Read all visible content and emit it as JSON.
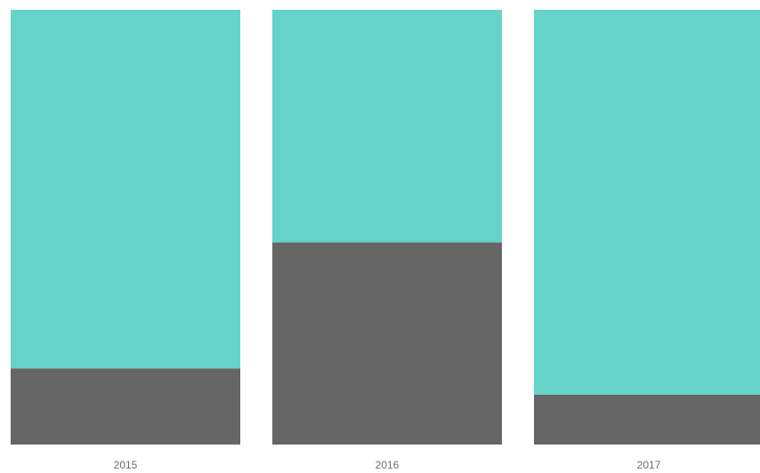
{
  "chart_data": {
    "type": "bar",
    "stacked": true,
    "percent_stacked": true,
    "categories": [
      "2015",
      "2016",
      "2017"
    ],
    "series": [
      {
        "values": [
          17.5,
          46.5,
          11.5
        ],
        "color": "#666666"
      },
      {
        "values": [
          82.5,
          53.5,
          88.5
        ],
        "color": "#66d3ca"
      }
    ],
    "ylim": [
      0,
      100
    ],
    "grid": false,
    "legend": "none",
    "title": "",
    "xlabel": "",
    "ylabel": ""
  }
}
